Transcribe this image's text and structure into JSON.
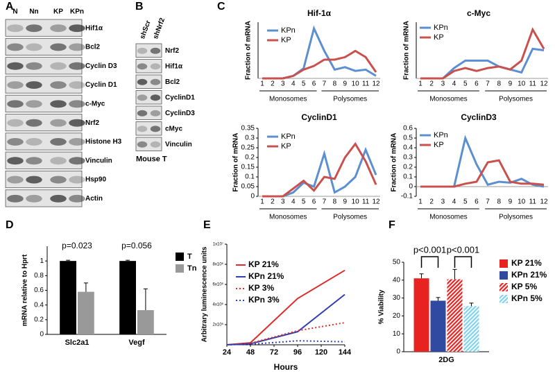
{
  "panels": {
    "labels": [
      "A",
      "B",
      "C",
      "D",
      "E",
      "F"
    ]
  },
  "blot_a": {
    "lanes": [
      "N",
      "Nn",
      "KP",
      "KPn"
    ],
    "bands": [
      "Hif1α",
      "Bcl2",
      "Cyclin D3",
      "Cyclin D1",
      "c-Myc",
      "Nrf2",
      "Histone H3",
      "Vinculin",
      "Hsp90",
      "Actin"
    ]
  },
  "blot_b": {
    "lanes": [
      "shScr",
      "shNrf2"
    ],
    "bands": [
      "Nrf2",
      "Hif1α",
      "Bcl2",
      "CyclinD1",
      "CyclinD3",
      "cMyc",
      "Vinculin"
    ],
    "caption": "Mouse T"
  },
  "chart_data": [
    {
      "type": "line",
      "title": "Hif-1α",
      "y_label": "Fraction of mRNA",
      "categories": [
        "1",
        "2",
        "3",
        "4",
        "5",
        "6",
        "7",
        "8",
        "9",
        "10",
        "11",
        "12"
      ],
      "groups": [
        "Monosomes",
        "Polysomes"
      ],
      "ylim": [
        0,
        0.45
      ],
      "series": [
        {
          "name": "KPn",
          "color": "#5b8fd0",
          "values": [
            0,
            0,
            0,
            0.02,
            0.08,
            0.4,
            0.22,
            0.07,
            0.09,
            0.06,
            0.07,
            0.02
          ]
        },
        {
          "name": "KP",
          "color": "#c9504d",
          "values": [
            0,
            0,
            0,
            0.02,
            0.07,
            0.1,
            0.15,
            0.15,
            0.17,
            0.22,
            0.17,
            0.05
          ]
        }
      ]
    },
    {
      "type": "line",
      "title": "c-Myc",
      "y_label": "Fraction of mRNA",
      "categories": [
        "1",
        "2",
        "3",
        "4",
        "5",
        "6",
        "7",
        "8",
        "9",
        "10",
        "11",
        "12"
      ],
      "groups": [
        "Monosomes",
        "Polysomes"
      ],
      "ylim": [
        0,
        0.38
      ],
      "series": [
        {
          "name": "KPn",
          "color": "#5b8fd0",
          "values": [
            0,
            0,
            0,
            0.07,
            0.12,
            0.12,
            0.12,
            0.08,
            0.06,
            0.04,
            0.2,
            0.19
          ]
        },
        {
          "name": "KP",
          "color": "#c9504d",
          "values": [
            0,
            0,
            0,
            0.05,
            0.07,
            0.05,
            0.07,
            0.08,
            0.06,
            0.12,
            0.33,
            0.2
          ]
        }
      ]
    },
    {
      "type": "line",
      "title": "CyclinD1",
      "y_label": "Fraction of mRNA",
      "categories": [
        "1",
        "2",
        "3",
        "4",
        "5",
        "6",
        "7",
        "8",
        "9",
        "10",
        "11",
        "12"
      ],
      "groups": [
        "Monosomes",
        "Polysomes"
      ],
      "ylim": [
        0,
        0.35
      ],
      "yticks": [
        0,
        0.05,
        0.1,
        0.15,
        0.2,
        0.25,
        0.3,
        0.35
      ],
      "series": [
        {
          "name": "KPn",
          "color": "#5b8fd0",
          "values": [
            0,
            0,
            0,
            0.02,
            0.07,
            0.05,
            0.22,
            0.02,
            0.05,
            0.1,
            0.24,
            0.11
          ]
        },
        {
          "name": "KP",
          "color": "#c9504d",
          "values": [
            0,
            0,
            0,
            0.04,
            0.08,
            0.03,
            0.1,
            0.09,
            0.2,
            0.27,
            0.18,
            0.06
          ]
        }
      ]
    },
    {
      "type": "line",
      "title": "CyclinD3",
      "y_label": "Fraction of mRNA",
      "categories": [
        "1",
        "2",
        "3",
        "4",
        "5",
        "6",
        "7",
        "8",
        "9",
        "10",
        "11",
        "12"
      ],
      "groups": [
        "Monosomes",
        "Polysomes"
      ],
      "ylim": [
        -0.1,
        0.6
      ],
      "yticks": [
        -0.1,
        0,
        0.1,
        0.2,
        0.3,
        0.4,
        0.5,
        0.6
      ],
      "series": [
        {
          "name": "KPn",
          "color": "#5b8fd0",
          "values": [
            0,
            0,
            0,
            0,
            0.5,
            0.23,
            0.02,
            0.05,
            0.04,
            0.08,
            0.02,
            0
          ]
        },
        {
          "name": "KP",
          "color": "#c9504d",
          "values": [
            0,
            0,
            0,
            0,
            0.03,
            0.05,
            0.25,
            0.27,
            0.05,
            0.03,
            0.03,
            0.02
          ]
        }
      ]
    },
    {
      "type": "bar",
      "y_label": "mRNA relative to Hprt",
      "categories": [
        "Slc2a1",
        "Vegf"
      ],
      "annotations": [
        "p=0.023",
        "p=0.056"
      ],
      "ylim": [
        0,
        1.2
      ],
      "yticks": [
        0,
        0.2,
        0.4,
        0.6,
        0.8,
        1
      ],
      "series": [
        {
          "name": "T",
          "color": "#000000",
          "values": [
            1,
            1
          ],
          "errors": [
            0.01,
            0.01
          ]
        },
        {
          "name": "Tn",
          "color": "#999999",
          "values": [
            0.58,
            0.33
          ],
          "errors": [
            0.12,
            0.29
          ]
        }
      ]
    },
    {
      "type": "xyline",
      "x_label": "Hours",
      "y_label": "Arbitrary luminescence units",
      "x": [
        24,
        48,
        96,
        144
      ],
      "xlim": [
        24,
        144
      ],
      "xticks": [
        24,
        48,
        72,
        96,
        120,
        144
      ],
      "ylim": [
        0,
        10000000
      ],
      "yticks": [
        {
          "value": 2000000,
          "label": "2x10⁶"
        },
        {
          "value": 4000000,
          "label": "4x10⁶"
        },
        {
          "value": 6000000,
          "label": "6x10⁶"
        },
        {
          "value": 8000000,
          "label": "8x10⁶"
        },
        {
          "value": 10000000,
          "label": "1x10⁷"
        }
      ],
      "series": [
        {
          "name": "KP 21%",
          "color": "#e02a2a",
          "style": "solid",
          "values": [
            0,
            200000,
            4600000,
            7400000
          ]
        },
        {
          "name": "KPn 21%",
          "color": "#2f3fb0",
          "style": "solid",
          "values": [
            0,
            100000,
            1300000,
            5000000
          ]
        },
        {
          "name": "KP 3%",
          "color": "#e02a2a",
          "style": "dotted",
          "values": [
            0,
            150000,
            1400000,
            2200000
          ]
        },
        {
          "name": "KPn 3%",
          "color": "#2f3fb0",
          "style": "dotted",
          "values": [
            0,
            50000,
            400000,
            300000
          ]
        }
      ]
    },
    {
      "type": "bar",
      "y_label": "% Viability",
      "categories": [
        "2DG"
      ],
      "annotations": [
        "p<0.001",
        "p<0.001"
      ],
      "ylim": [
        0,
        50
      ],
      "yticks": [
        0,
        10,
        20,
        30,
        40,
        50
      ],
      "series": [
        {
          "name": "KP 21%",
          "color": "#e8231f",
          "pattern": "solid",
          "values": [
            41
          ],
          "errors": [
            2.5
          ]
        },
        {
          "name": "KPn 21%",
          "color": "#2f4aa0",
          "pattern": "solid",
          "values": [
            28.5
          ],
          "errors": [
            1.8
          ]
        },
        {
          "name": "KP 5%",
          "color": "#e8231f",
          "pattern": "hatched",
          "values": [
            40.5
          ],
          "errors": [
            5.5
          ]
        },
        {
          "name": "KPn 5%",
          "color": "#7fd3ef",
          "pattern": "hatched",
          "values": [
            25.5
          ],
          "errors": [
            1.7
          ]
        }
      ]
    }
  ]
}
